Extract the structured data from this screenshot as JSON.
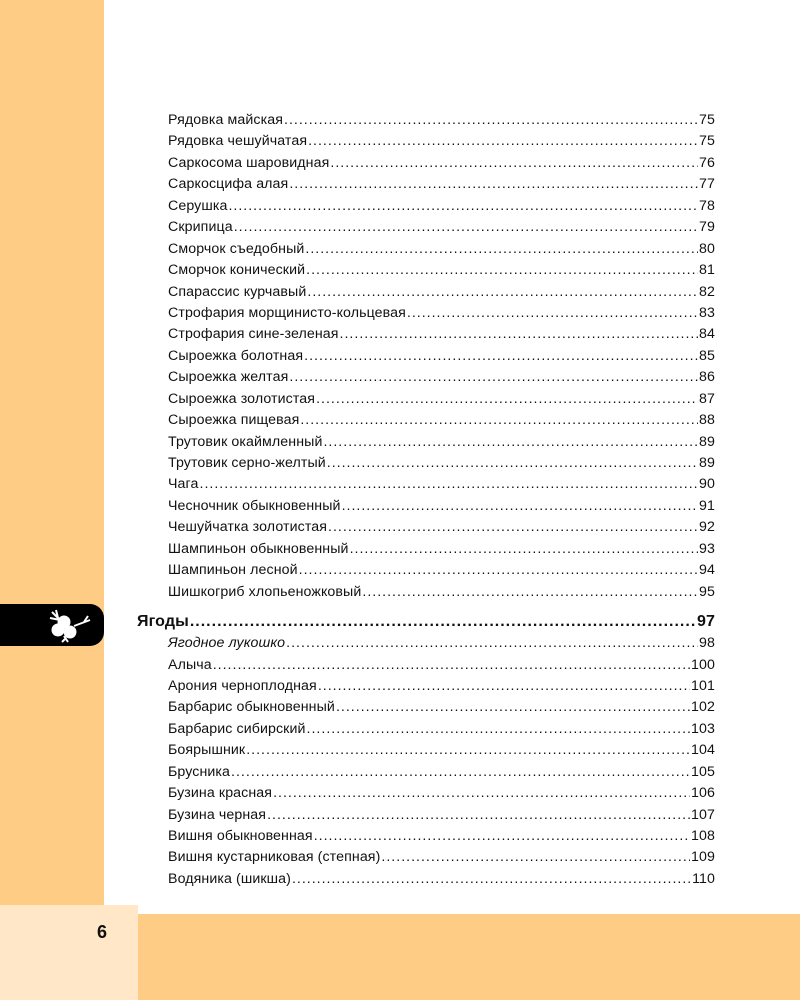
{
  "page_number": "6",
  "section_icon": "berries-icon",
  "entries_before": [
    {
      "title": "Рядовка майская",
      "page": "75"
    },
    {
      "title": "Рядовка чешуйчатая",
      "page": "75"
    },
    {
      "title": "Саркосома шаровидная",
      "page": "76"
    },
    {
      "title": "Саркосцифа алая",
      "page": "77"
    },
    {
      "title": "Серушка",
      "page": "78"
    },
    {
      "title": "Скрипица",
      "page": "79"
    },
    {
      "title": "Сморчок съедобный",
      "page": "80"
    },
    {
      "title": "Сморчок конический",
      "page": "81"
    },
    {
      "title": "Спарассис курчавый",
      "page": "82"
    },
    {
      "title": "Строфария морщинисто-кольцевая",
      "page": "83"
    },
    {
      "title": "Строфария сине-зеленая",
      "page": "84"
    },
    {
      "title": "Сыроежка болотная",
      "page": "85"
    },
    {
      "title": "Сыроежка желтая",
      "page": "86"
    },
    {
      "title": "Сыроежка золотистая",
      "page": "87"
    },
    {
      "title": "Сыроежка пищевая",
      "page": "88"
    },
    {
      "title": "Трутовик окаймленный",
      "page": "89"
    },
    {
      "title": "Трутовик серно-желтый",
      "page": "89"
    },
    {
      "title": "Чага",
      "page": "90"
    },
    {
      "title": "Чесночник обыкновенный",
      "page": "91"
    },
    {
      "title": "Чешуйчатка золотистая",
      "page": "92"
    },
    {
      "title": "Шампиньон обыкновенный",
      "page": "93"
    },
    {
      "title": "Шампиньон лесной",
      "page": "94"
    },
    {
      "title": "Шишкогриб хлопьеножковый",
      "page": "95"
    }
  ],
  "section": {
    "title": "Ягоды",
    "page": "97"
  },
  "entries_after": [
    {
      "title": "Ягодное лукошко",
      "page": "98",
      "italic": true
    },
    {
      "title": "Алыча",
      "page": "100"
    },
    {
      "title": "Арония черноплодная",
      "page": "101"
    },
    {
      "title": "Барбарис обыкновенный",
      "page": "102"
    },
    {
      "title": "Барбарис сибирский",
      "page": "103"
    },
    {
      "title": "Боярышник",
      "page": "104"
    },
    {
      "title": "Брусника",
      "page": "105"
    },
    {
      "title": "Бузина красная",
      "page": "106"
    },
    {
      "title": "Бузина черная",
      "page": "107"
    },
    {
      "title": "Вишня обыкновенная",
      "page": "108"
    },
    {
      "title": "Вишня кустарниковая (степная)",
      "page": "109"
    },
    {
      "title": "Водяника (шикша)",
      "page": "110"
    }
  ],
  "colors": {
    "orange": "#ffcc85",
    "light_orange": "#ffe7c8",
    "tab": "#000000"
  }
}
